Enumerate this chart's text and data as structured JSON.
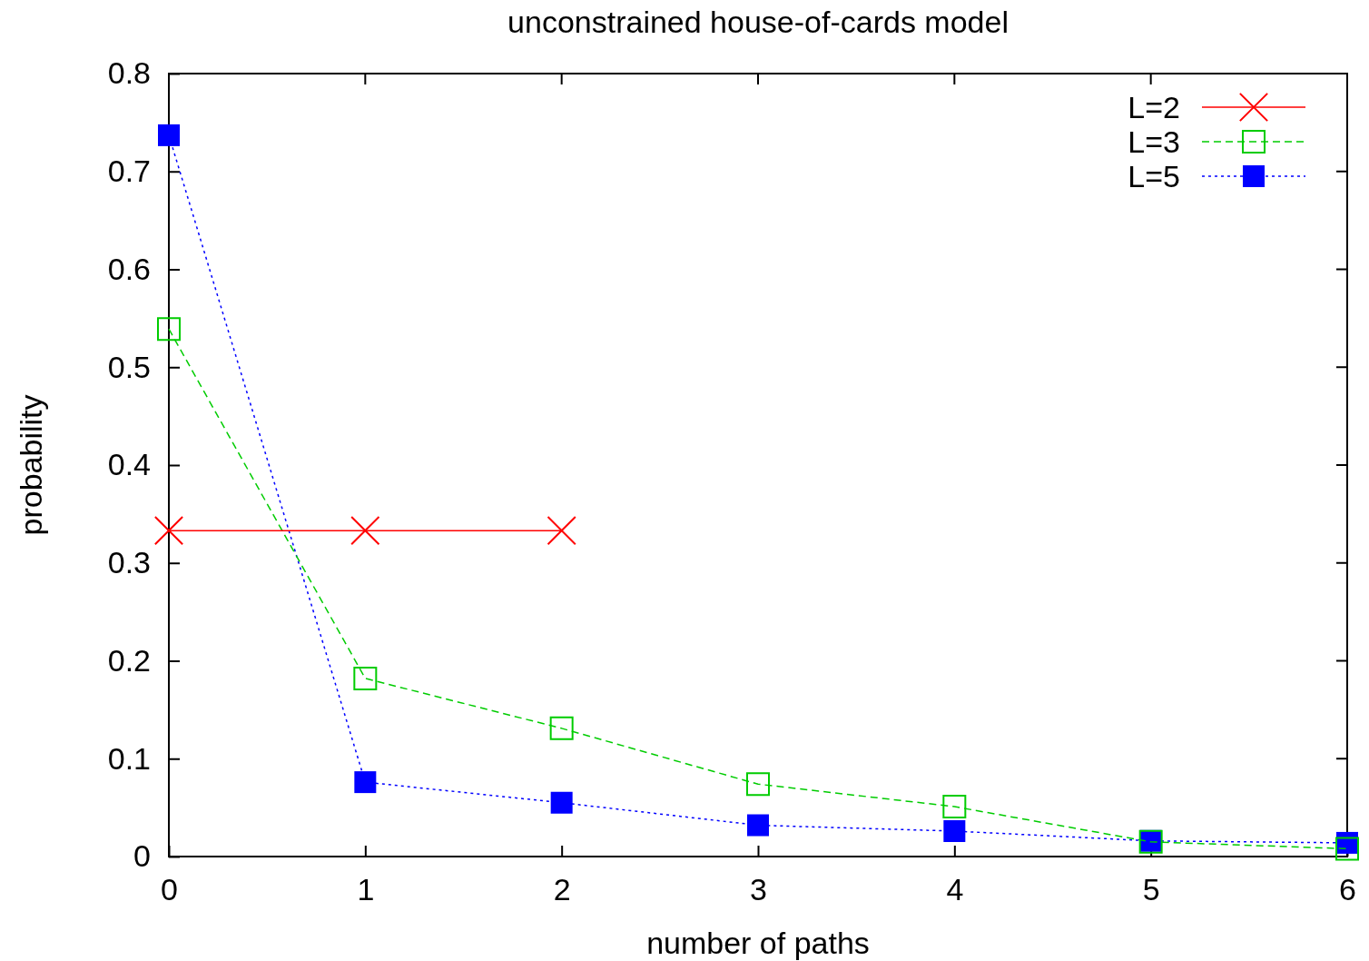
{
  "chart_data": {
    "type": "line",
    "title": "unconstrained house-of-cards model",
    "xlabel": "number of paths",
    "ylabel": "probability",
    "xlim": [
      0,
      6
    ],
    "xticks": [
      0,
      1,
      2,
      3,
      4,
      5,
      6
    ],
    "ylim": [
      0,
      0.8
    ],
    "yticks": [
      0,
      0.1,
      0.2,
      0.3,
      0.4,
      0.5,
      0.6,
      0.7,
      0.8
    ],
    "grid": false,
    "legend": "top right",
    "series": [
      {
        "name": "L=2",
        "color": "#ff0000",
        "x": [
          0,
          1,
          2
        ],
        "values": [
          0.333,
          0.333,
          0.333
        ],
        "marker": "cross",
        "line_style": "solid"
      },
      {
        "name": "L=3",
        "color": "#00cc00",
        "x": [
          0,
          1,
          2,
          3,
          4,
          5,
          6
        ],
        "values": [
          0.539,
          0.182,
          0.131,
          0.074,
          0.051,
          0.015,
          0.008
        ],
        "marker": "square",
        "line_style": "dashed"
      },
      {
        "name": "L=5",
        "color": "#0000ff",
        "x": [
          0,
          1,
          2,
          3,
          4,
          5,
          6
        ],
        "values": [
          0.737,
          0.076,
          0.055,
          0.032,
          0.026,
          0.016,
          0.014
        ],
        "marker": "square",
        "line_style": "dotted"
      }
    ]
  }
}
